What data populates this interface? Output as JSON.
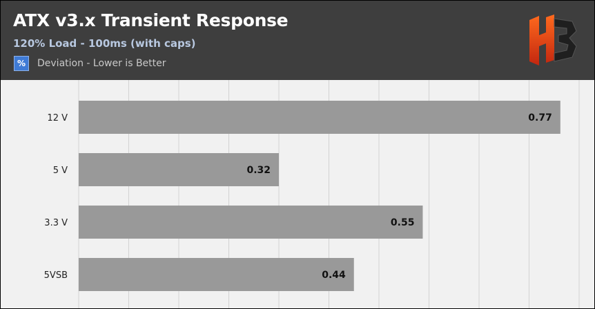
{
  "header": {
    "title": "ATX v3.x Transient Response",
    "subtitle": "120% Load - 100ms (with caps)",
    "legend_symbol": "%",
    "legend_label": "Deviation - Lower is Better"
  },
  "logo": {
    "icon": "hb-logo-icon",
    "color_primary": "#e8431f",
    "color_secondary": "#2a2a2a"
  },
  "chart_data": {
    "type": "bar",
    "orientation": "horizontal",
    "categories": [
      "12 V",
      "5 V",
      "3.3 V",
      "5VSB"
    ],
    "series": [
      {
        "values": [
          0.77,
          0.32,
          0.55,
          0.44
        ],
        "color": "#999999"
      }
    ],
    "xlim": [
      0,
      0.8
    ],
    "grid": true,
    "legend_position": "top-left",
    "colors": {
      "bar": "#999999",
      "grid": "#d2d2d2",
      "background": "#f1f1f1"
    }
  }
}
